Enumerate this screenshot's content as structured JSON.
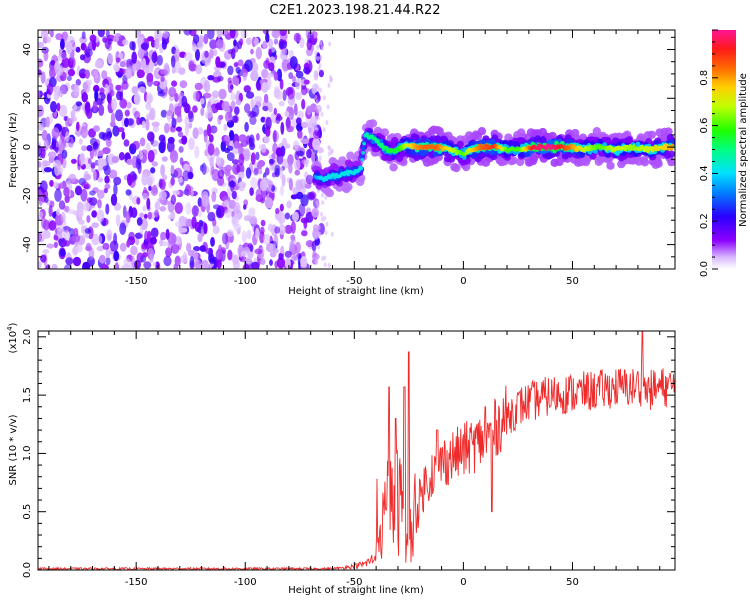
{
  "title": "C2E1.2023.198.21.44.R22",
  "chart_data": [
    {
      "type": "heatmap",
      "xlabel": "Height of straight line (km)",
      "ylabel": "Frequency (Hz)",
      "xlim": [
        -195,
        97
      ],
      "ylim": [
        -50,
        48
      ],
      "x_ticks": [
        -150,
        -100,
        -50,
        0,
        50
      ],
      "y_ticks": [
        -40,
        -20,
        0,
        20,
        40
      ],
      "colorbar": {
        "label": "Normalized spectral amplitude",
        "range": [
          0,
          1
        ],
        "ticks": [
          "0.0",
          "0.2",
          "0.4",
          "0.6",
          "0.8"
        ]
      },
      "noise_region_x": [
        -195,
        -68
      ],
      "ridge": {
        "x": [
          -68,
          -65,
          -60,
          -55,
          -50,
          -47,
          -45,
          -42,
          -38,
          -34,
          -30,
          -26,
          -22,
          -18,
          -12,
          -6,
          0,
          4,
          8,
          14,
          20,
          26,
          32,
          40,
          48,
          55,
          62,
          70,
          78,
          85,
          92,
          96
        ],
        "freq": [
          -12,
          -13,
          -12,
          -11,
          -10,
          -9,
          5,
          4,
          1,
          -2,
          -1,
          1,
          0,
          0,
          0,
          -1,
          -3,
          -1,
          0,
          0,
          -1,
          -1,
          0,
          0,
          0,
          -1,
          0,
          -1,
          0,
          -1,
          0,
          0
        ],
        "amplitude": [
          0.35,
          0.4,
          0.42,
          0.42,
          0.42,
          0.42,
          0.45,
          0.5,
          0.5,
          0.55,
          0.55,
          0.7,
          0.8,
          0.85,
          0.85,
          0.7,
          0.6,
          0.75,
          0.85,
          0.9,
          0.6,
          0.6,
          0.95,
          1.0,
          0.85,
          0.7,
          0.6,
          0.7,
          0.65,
          0.7,
          0.75,
          0.8
        ]
      }
    },
    {
      "type": "line",
      "xlabel": "Height of straight line (km)",
      "ylabel": "SNR (10 * v/v)",
      "y_multiplier": "(x10^4)",
      "xlim": [
        -195,
        97
      ],
      "ylim": [
        0,
        2.05
      ],
      "x_ticks": [
        -150,
        -100,
        -50,
        0,
        50
      ],
      "y_ticks": [
        "0.0",
        "0.5",
        "1.0",
        "1.5",
        "2.0"
      ],
      "series": [
        {
          "color": "#ee2a2a",
          "envelope_x": [
            -195,
            -60,
            -50,
            -45,
            -40,
            -38,
            -36,
            -33,
            -30,
            -28,
            -25,
            -22,
            -18,
            -15,
            -10,
            -5,
            0,
            5,
            10,
            15,
            20,
            25,
            30,
            35,
            40,
            50,
            60,
            70,
            80,
            85,
            90,
            97
          ],
          "envelope_y": [
            0.01,
            0.01,
            0.03,
            0.05,
            0.1,
            0.25,
            0.4,
            0.5,
            0.55,
            0.5,
            0.1,
            0.45,
            0.7,
            0.8,
            0.9,
            0.95,
            1.0,
            1.05,
            1.1,
            1.2,
            1.3,
            1.38,
            1.42,
            1.45,
            1.48,
            1.5,
            1.52,
            1.55,
            1.55,
            1.52,
            1.55,
            1.55
          ],
          "spikes": [
            {
              "x": -34,
              "y": 1.57
            },
            {
              "x": -31,
              "y": 1.3
            },
            {
              "x": -27,
              "y": 1.57
            },
            {
              "x": -25,
              "y": 1.87
            },
            {
              "x": -12,
              "y": 1.2
            },
            {
              "x": 10,
              "y": 1.4
            },
            {
              "x": 13,
              "y": 0.5
            },
            {
              "x": 80,
              "y": 1.7
            },
            {
              "x": 82,
              "y": 2.05
            }
          ]
        }
      ]
    }
  ]
}
